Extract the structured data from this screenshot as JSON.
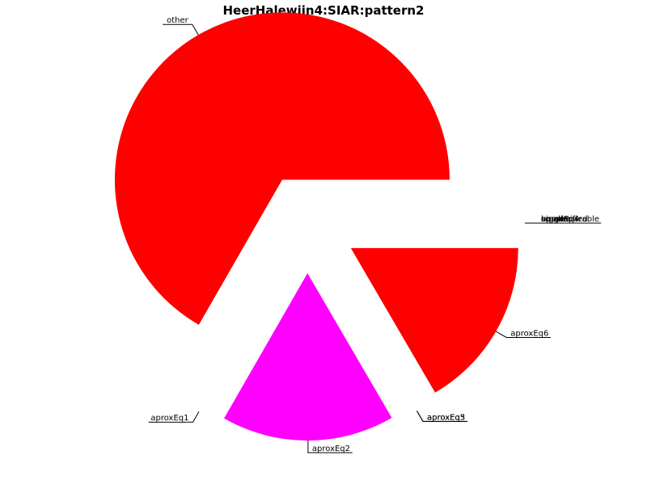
{
  "chart_data": {
    "type": "pie",
    "title": "HeerHalewijn4:SIAR:pattern2",
    "slices": [
      {
        "label": "other",
        "value": 66.7,
        "color": "#ff0000"
      },
      {
        "label": "aproxEq1",
        "value": 0,
        "color": "#ff0000"
      },
      {
        "label": "aproxEq2",
        "value": 16.7,
        "color": "#ff00ff"
      },
      {
        "label": "aproxEq3",
        "value": 0,
        "color": "#ff0000"
      },
      {
        "label": "aproxEq5",
        "value": 0,
        "color": "#ff0000"
      },
      {
        "label": "aproxEq6",
        "value": 16.6,
        "color": "#ff0000"
      },
      {
        "label": "unspecified",
        "value": 0,
        "color": "#ff0000"
      },
      {
        "label": "equal",
        "value": 0,
        "color": "#ff0000"
      },
      {
        "label": "bigger",
        "value": 0,
        "color": "#ff0000"
      },
      {
        "label": "smaller",
        "value": 0,
        "color": "#ff0000"
      },
      {
        "label": "aproxEq4",
        "value": 0,
        "color": "#ff0000"
      },
      {
        "label": "uncomparable",
        "value": 0,
        "color": "#ff0000"
      }
    ]
  }
}
